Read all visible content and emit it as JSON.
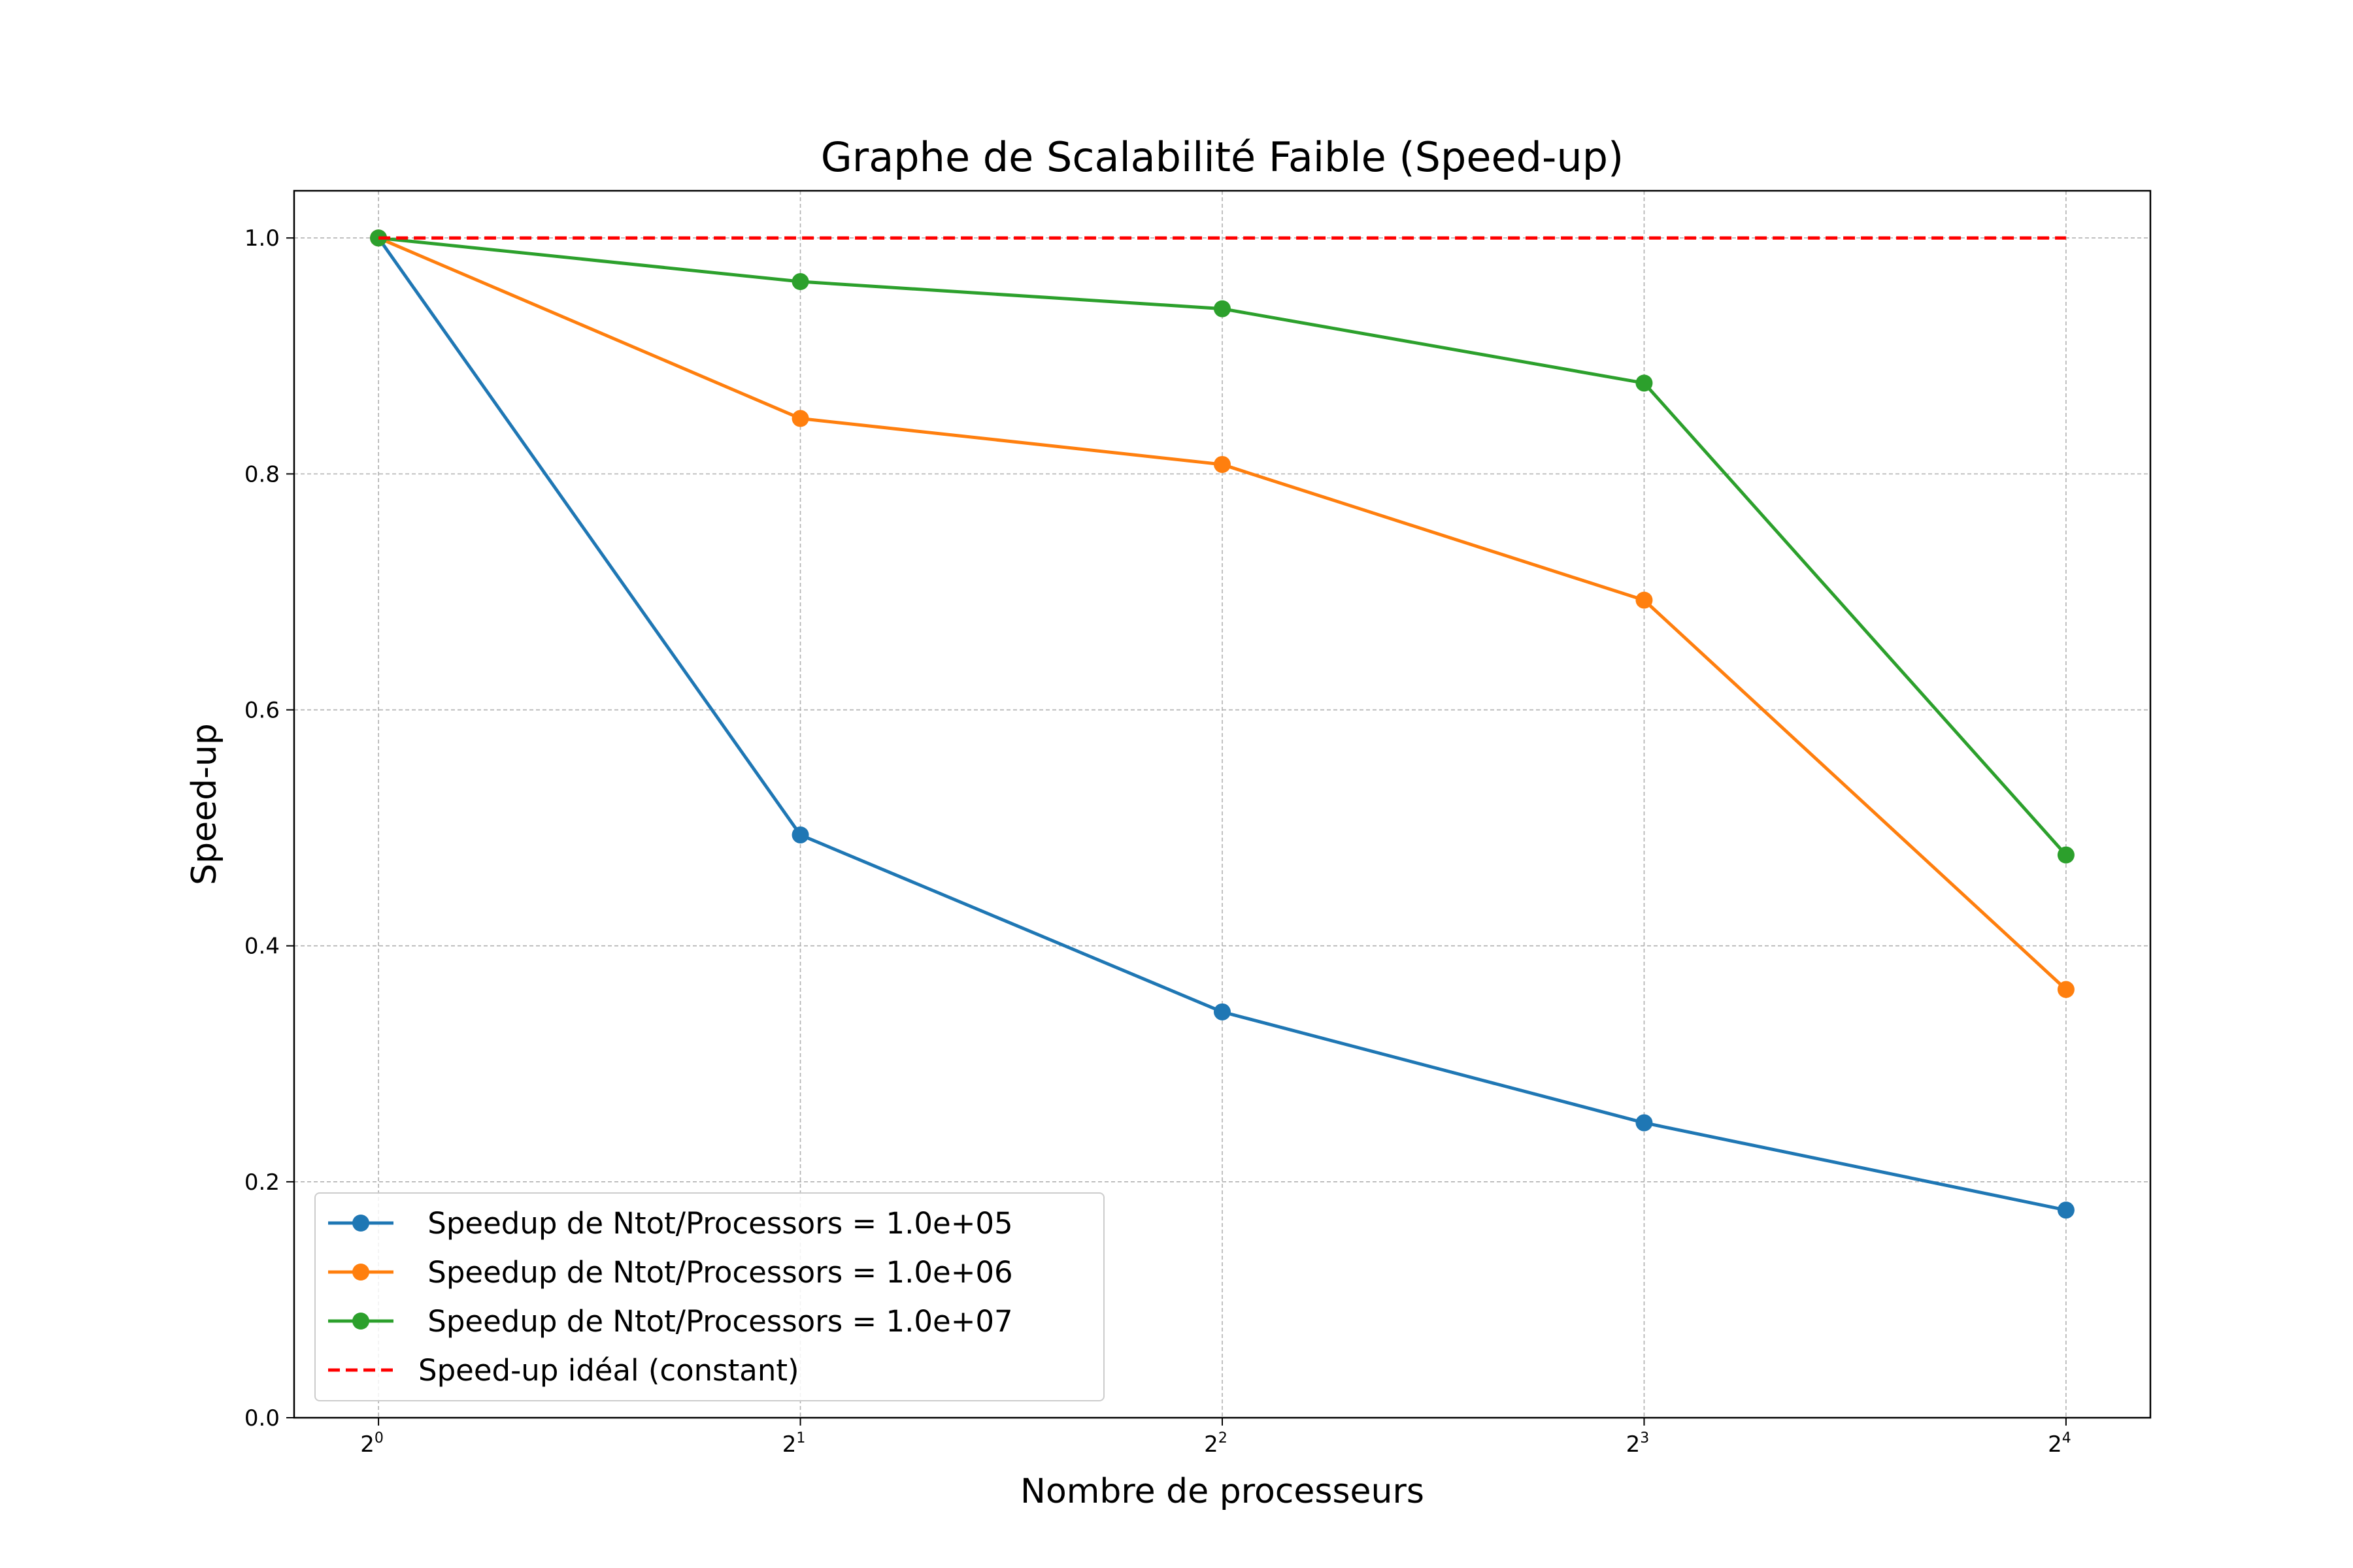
{
  "chart_data": {
    "type": "line",
    "title": "Graphe de Scalabilité Faible (Speed-up)",
    "xlabel": "Nombre de processeurs",
    "ylabel": "Speed-up",
    "x_scale": "log2",
    "x": [
      1,
      2,
      4,
      8,
      16
    ],
    "x_tick_labels": [
      {
        "base": "2",
        "exp": "0"
      },
      {
        "base": "2",
        "exp": "1"
      },
      {
        "base": "2",
        "exp": "2"
      },
      {
        "base": "2",
        "exp": "3"
      },
      {
        "base": "2",
        "exp": "4"
      }
    ],
    "ylim": [
      0,
      1.04
    ],
    "y_ticks": [
      0.0,
      0.2,
      0.4,
      0.6,
      0.8,
      1.0
    ],
    "y_tick_labels": [
      "0.0",
      "0.2",
      "0.4",
      "0.6",
      "0.8",
      "1.0"
    ],
    "grid": true,
    "legend_position": "lower-left",
    "series": [
      {
        "name": " Speedup de Ntot/Processors = 1.0e+05",
        "color": "#1f77b4",
        "style": "solid",
        "marker": "circle",
        "values": [
          1.0,
          0.494,
          0.344,
          0.25,
          0.176
        ]
      },
      {
        "name": " Speedup de Ntot/Processors = 1.0e+06",
        "color": "#ff7f0e",
        "style": "solid",
        "marker": "circle",
        "values": [
          1.0,
          0.847,
          0.808,
          0.693,
          0.363
        ]
      },
      {
        "name": " Speedup de Ntot/Processors = 1.0e+07",
        "color": "#2ca02c",
        "style": "solid",
        "marker": "circle",
        "values": [
          1.0,
          0.963,
          0.94,
          0.877,
          0.477
        ]
      },
      {
        "name": "Speed-up idéal (constant)",
        "color": "#ff0000",
        "style": "dashed",
        "marker": "none",
        "values": [
          1.0,
          1.0,
          1.0,
          1.0,
          1.0
        ]
      }
    ]
  }
}
